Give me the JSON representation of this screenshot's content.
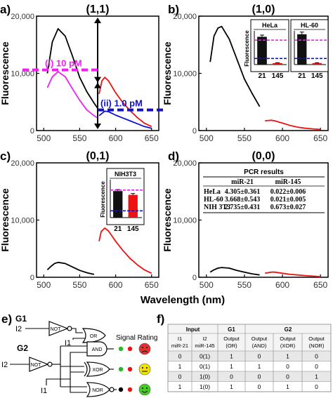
{
  "figure": {
    "ylabel": "Fluorescence",
    "xlabel": "Wavelength (nm)",
    "yticks": [
      "0",
      "10,000",
      "20,000"
    ],
    "xticks": [
      "500",
      "550",
      "600",
      "650"
    ]
  },
  "chart_data": [
    {
      "id": "a",
      "panel_label": "a)",
      "title": "(1,1)",
      "type": "line",
      "xlim": [
        490,
        660
      ],
      "ylim": [
        0,
        20000
      ],
      "series": [
        {
          "color": "#000000",
          "x": [
            505,
            512,
            520,
            530,
            540,
            550,
            560,
            570,
            575
          ],
          "y": [
            10000,
            15500,
            17800,
            16500,
            13000,
            9300,
            6800,
            4800,
            3900
          ]
        },
        {
          "color": "#ee22ee",
          "x": [
            505,
            512,
            520,
            530,
            540,
            550,
            560,
            570,
            575
          ],
          "y": [
            7500,
            9400,
            10300,
            9400,
            7300,
            5300,
            3600,
            2600,
            2200
          ]
        },
        {
          "color": "#ee1111",
          "x": [
            577,
            581,
            585,
            590,
            600,
            610,
            620,
            630,
            640,
            650
          ],
          "y": [
            6400,
            8700,
            9300,
            8700,
            6600,
            4900,
            3500,
            2300,
            1300,
            700
          ]
        },
        {
          "color": "#1111cc",
          "x": [
            577,
            585,
            590,
            600,
            610,
            620,
            630,
            640,
            650
          ],
          "y": [
            2600,
            3400,
            3300,
            2700,
            2200,
            1700,
            1200,
            700,
            400
          ]
        }
      ],
      "annotations": [
        {
          "text": "(i) 10 pM",
          "color": "#ee22ee",
          "y": 10600
        },
        {
          "text": "(ii) 1.0 pM",
          "color": "#1111cc",
          "y": 3600
        }
      ]
    },
    {
      "id": "b",
      "panel_label": "b)",
      "title": "(1,0)",
      "type": "line",
      "xlim": [
        490,
        660
      ],
      "ylim": [
        0,
        20000
      ],
      "series": [
        {
          "color": "#000000",
          "x": [
            505,
            510,
            515,
            520,
            530,
            540,
            550,
            560,
            570
          ],
          "y": [
            12000,
            16500,
            17900,
            18200,
            16000,
            12500,
            9000,
            6500,
            4200
          ]
        },
        {
          "color": "#ee1111",
          "x": [
            577,
            585,
            590,
            600,
            610,
            620,
            630,
            640,
            650
          ],
          "y": [
            1700,
            1800,
            1700,
            1300,
            900,
            600,
            400,
            300,
            200
          ]
        }
      ],
      "insets": [
        {
          "label": "HeLa",
          "ylabel": "Fluorescence",
          "categories": [
            "21",
            "145"
          ],
          "values": [
            16500,
            900
          ],
          "errors": [
            1000,
            200
          ],
          "colors": [
            "#111111",
            "#ee1111"
          ],
          "magenta_level": 14500,
          "blue_level": 3600,
          "ylim": [
            0,
            20000
          ]
        },
        {
          "label": "HL-60",
          "ylabel": "",
          "categories": [
            "21",
            "145"
          ],
          "values": [
            18000,
            900
          ],
          "errors": [
            1300,
            200
          ],
          "colors": [
            "#111111",
            "#ee1111"
          ],
          "magenta_level": 14500,
          "blue_level": 3600,
          "ylim": [
            0,
            20000
          ]
        }
      ]
    },
    {
      "id": "c",
      "panel_label": "c)",
      "title": "(0,1)",
      "type": "line",
      "xlim": [
        490,
        660
      ],
      "ylim": [
        0,
        20000
      ],
      "series": [
        {
          "color": "#000000",
          "x": [
            505,
            510,
            515,
            520,
            530,
            540,
            550,
            560,
            570
          ],
          "y": [
            1300,
            1900,
            2400,
            2600,
            2400,
            1800,
            1200,
            800,
            500
          ]
        },
        {
          "color": "#ee1111",
          "x": [
            577,
            580,
            585,
            590,
            600,
            610,
            620,
            630,
            640,
            650
          ],
          "y": [
            6300,
            8000,
            8600,
            8100,
            6300,
            4700,
            3300,
            2200,
            1300,
            700
          ]
        }
      ],
      "insets": [
        {
          "label": "NIH3T3",
          "ylabel": "Fluorescence",
          "categories": [
            "21",
            "145"
          ],
          "values": [
            14000,
            12000
          ],
          "errors": [
            800,
            700
          ],
          "colors": [
            "#111111",
            "#ee1111"
          ],
          "magenta_level": 14500,
          "blue_level": 3600,
          "ylim": [
            0,
            20000
          ]
        }
      ]
    },
    {
      "id": "d",
      "panel_label": "d)",
      "title": "(0,0)",
      "type": "line",
      "xlim": [
        490,
        660
      ],
      "ylim": [
        0,
        20000
      ],
      "series": [
        {
          "color": "#000000",
          "x": [
            505,
            510,
            515,
            520,
            530,
            540,
            550,
            560,
            570
          ],
          "y": [
            900,
            1300,
            1600,
            1700,
            1600,
            1200,
            900,
            600,
            400
          ]
        },
        {
          "color": "#ee1111",
          "x": [
            577,
            585,
            590,
            600,
            610,
            620,
            630,
            640,
            650
          ],
          "y": [
            700,
            900,
            900,
            700,
            500,
            400,
            300,
            200,
            100
          ]
        }
      ],
      "table": {
        "title": "PCR results",
        "headers": [
          "",
          "miR-21",
          "miR-145"
        ],
        "rows": [
          [
            "HeLa",
            "4.305±0.361",
            "0.022±0.006"
          ],
          [
            "HL-60",
            "3.668±0.543",
            "0.021±0.005"
          ],
          [
            "NIH 3T3",
            "2.735±0.431",
            "0.673±0.027"
          ]
        ]
      }
    }
  ],
  "panel_e": {
    "label": "e)",
    "g1": "G1",
    "g2": "G2",
    "inputs": {
      "i1": "I1",
      "i2": "I2"
    },
    "gates": {
      "not": "NOT",
      "or": "OR",
      "and": "AND",
      "xor": "XOR",
      "nor": "NOR"
    },
    "signal_rating": "Signal Rating"
  },
  "panel_f": {
    "label": "f)",
    "groups": [
      "Input",
      "G1",
      "G2"
    ],
    "headers": [
      "I1\nmiR-21",
      "I2\nmiR-145",
      "Output\n(OR)",
      "Output\n(AND)",
      "Output\n(XOR)",
      "Output\n(NOR)"
    ],
    "rows": [
      [
        "0",
        "0(1)",
        "1",
        "0",
        "1",
        "0"
      ],
      [
        "1",
        "0(1)",
        "1",
        "1",
        "0",
        "0"
      ],
      [
        "0",
        "1(0)",
        "0",
        "0",
        "0",
        "1"
      ],
      [
        "1",
        "1(0)",
        "1",
        "0",
        "1",
        "0"
      ]
    ]
  },
  "colors": {
    "black": "#000000",
    "magenta": "#ee22ee",
    "red": "#ee1111",
    "blue": "#1111cc",
    "green": "#22bb22",
    "smile_green": "#44cc22",
    "neutral_yellow": "#f2e200",
    "sad_red": "#e53030"
  }
}
